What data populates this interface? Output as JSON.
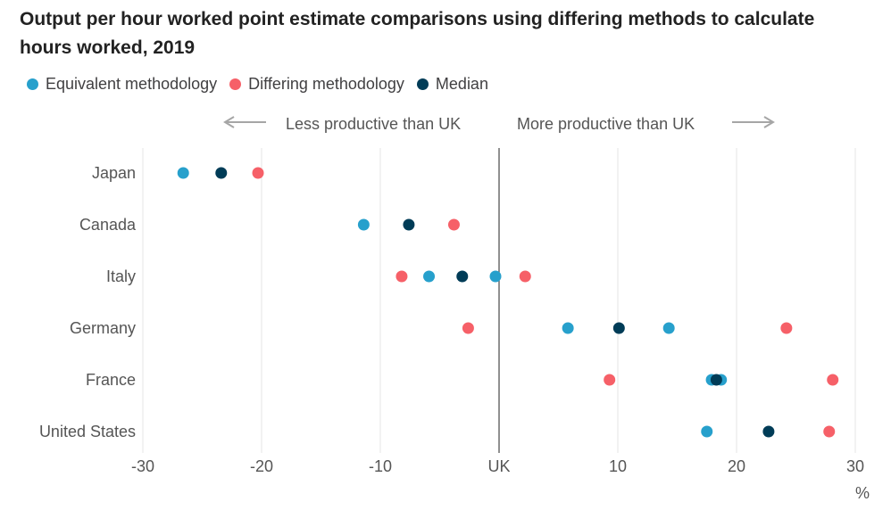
{
  "chart_data": {
    "type": "scatter",
    "title": "Output per hour worked point estimate comparisons using differing methods to calculate hours worked, 2019",
    "xlabel": "%",
    "xlim": [
      -30,
      30
    ],
    "xticks": [
      "-30",
      "-20",
      "-10",
      "UK",
      "10",
      "20",
      "30"
    ],
    "xtick_values": [
      -30,
      -20,
      -10,
      0,
      10,
      20,
      30
    ],
    "categories": [
      "Japan",
      "Canada",
      "Italy",
      "Germany",
      "France",
      "United States"
    ],
    "annotations": {
      "left": "Less productive than UK",
      "right": "More productive than UK"
    },
    "grid": true,
    "legend_position": "top-left",
    "series": [
      {
        "name": "Equivalent methodology",
        "color": "#27a0cc",
        "points": [
          {
            "category": "Japan",
            "value": -26.6
          },
          {
            "category": "Canada",
            "value": -11.4
          },
          {
            "category": "Italy",
            "value": -5.9
          },
          {
            "category": "Italy",
            "value": -0.3
          },
          {
            "category": "Germany",
            "value": 5.8
          },
          {
            "category": "Germany",
            "value": 14.3
          },
          {
            "category": "France",
            "value": 17.9
          },
          {
            "category": "France",
            "value": 18.7
          },
          {
            "category": "United States",
            "value": 17.5
          }
        ]
      },
      {
        "name": "Differing methodology",
        "color": "#f66068",
        "points": [
          {
            "category": "Japan",
            "value": -20.3
          },
          {
            "category": "Canada",
            "value": -3.8
          },
          {
            "category": "Italy",
            "value": -8.2
          },
          {
            "category": "Italy",
            "value": 2.2
          },
          {
            "category": "Germany",
            "value": -2.6
          },
          {
            "category": "Germany",
            "value": 24.2
          },
          {
            "category": "France",
            "value": 9.3
          },
          {
            "category": "France",
            "value": 28.1
          },
          {
            "category": "United States",
            "value": 27.8
          }
        ]
      },
      {
        "name": "Median",
        "color": "#003c57",
        "points": [
          {
            "category": "Japan",
            "value": -23.4
          },
          {
            "category": "Canada",
            "value": -7.6
          },
          {
            "category": "Italy",
            "value": -3.1
          },
          {
            "category": "Germany",
            "value": 10.1
          },
          {
            "category": "France",
            "value": 18.3
          },
          {
            "category": "United States",
            "value": 22.7
          }
        ]
      }
    ]
  }
}
